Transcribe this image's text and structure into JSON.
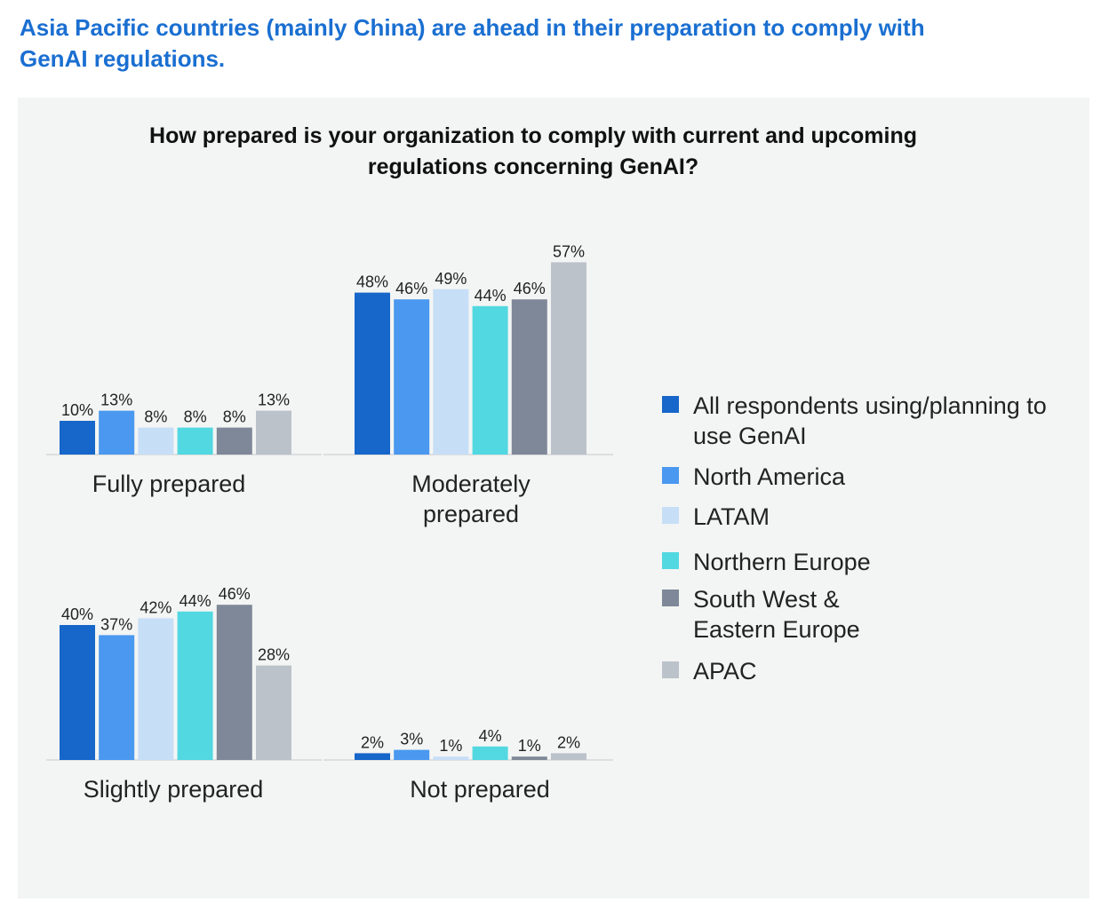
{
  "headline": "Asia Pacific countries (mainly China) are ahead in their preparation to comply with GenAI regulations.",
  "chart_data": {
    "type": "bar",
    "title": "How prepared is your organization to comply with current and upcoming regulations concerning GenAI?",
    "categories": [
      "Fully prepared",
      "Moderately prepared",
      "Slightly prepared",
      "Not prepared"
    ],
    "series": [
      {
        "name": "All respondents using/planning to use GenAI",
        "color": "#1766c9",
        "values": [
          10,
          48,
          40,
          2
        ]
      },
      {
        "name": "North America",
        "color": "#4a98ef",
        "values": [
          13,
          46,
          37,
          3
        ]
      },
      {
        "name": "LATAM",
        "color": "#c7def7",
        "values": [
          8,
          49,
          42,
          1
        ]
      },
      {
        "name": "Northern Europe",
        "color": "#52d8e0",
        "values": [
          8,
          44,
          44,
          4
        ]
      },
      {
        "name": "South West & Eastern Europe",
        "color": "#7f8898",
        "values": [
          8,
          46,
          46,
          1
        ]
      },
      {
        "name": "APAC",
        "color": "#bcc2ca",
        "values": [
          13,
          57,
          28,
          2
        ]
      }
    ],
    "value_suffix": "%",
    "legend": "right",
    "grid": false
  }
}
